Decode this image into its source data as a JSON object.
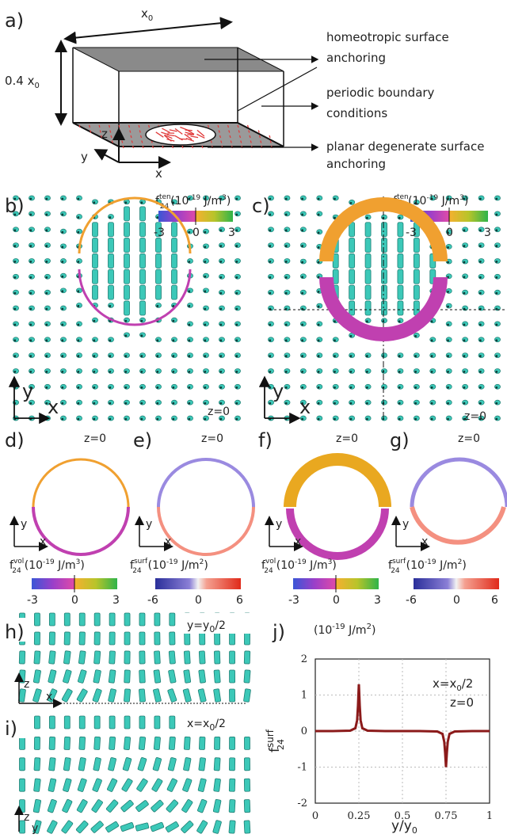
{
  "schematic": {
    "label": "a)",
    "width_label": "x",
    "width_sub": "0",
    "height_label": "0.4 x",
    "height_sub": "0",
    "axis_z": "z",
    "axis_y": "y",
    "axis_x": "x",
    "annotations": [
      "homeotropic surface",
      "anchoring",
      "periodic boundary",
      "conditions",
      "planar degenerate surface",
      "anchoring"
    ]
  },
  "panel_b": {
    "label": "b)",
    "z": "z=0",
    "axis_x": "x",
    "axis_y": "y"
  },
  "panel_c": {
    "label": "c)",
    "z": "z=0",
    "axis_x": "x",
    "axis_y": "y"
  },
  "cbar_ten": {
    "main": "f",
    "sup": "ten",
    "sub": "24",
    "unit": "(10",
    "exp": "-19",
    "unit2": " J/m",
    "pow": "3",
    "unit3": ")",
    "ticks": [
      "-3",
      "0",
      "3"
    ]
  },
  "cbar_vol": {
    "main": "f",
    "sup": "vol",
    "sub": "24",
    "unit": "(10",
    "exp": "-19",
    "unit2": " J/m",
    "pow": "3",
    "unit3": ")",
    "ticks": [
      "-3",
      "0",
      "3"
    ]
  },
  "cbar_surf": {
    "main": "f",
    "sup": "surf",
    "sub": "24",
    "unit": "(10",
    "exp": "-19",
    "unit2": " J/m",
    "pow": "2",
    "unit3": ")",
    "ticks": [
      "-6",
      "0",
      "6"
    ]
  },
  "panel_d": {
    "label": "d)",
    "z": "z=0",
    "axis_x": "x",
    "axis_y": "y"
  },
  "panel_e": {
    "label": "e)",
    "z": "z=0",
    "axis_x": "x",
    "axis_y": "y"
  },
  "panel_f": {
    "label": "f)",
    "z": "z=0",
    "axis_x": "x",
    "axis_y": "y"
  },
  "panel_g": {
    "label": "g)",
    "z": "z=0",
    "axis_x": "x",
    "axis_y": "y"
  },
  "panel_h": {
    "label": "h)",
    "slice": "y=y",
    "slice_sub": "0",
    "slice_tail": "/2",
    "axis_z": "z",
    "axis_x": "x"
  },
  "panel_i": {
    "label": "i)",
    "slice": "x=x",
    "slice_sub": "0",
    "slice_tail": "/2",
    "axis_z": "z",
    "axis_y": "y"
  },
  "panel_j": {
    "label": "j)",
    "unit": "(10",
    "exp": "-19",
    "unit2": " J/m",
    "pow": "2",
    "unit3": ")",
    "ylabel_main": "f",
    "ylabel_sup": "surf",
    "ylabel_sub": "24",
    "xlabel_main": "y/y",
    "xlabel_sub": "0",
    "note1_main": "x=x",
    "note1_sub": "0",
    "note1_tail": "/2",
    "note2": "z=0"
  },
  "chart_data": {
    "type": "line",
    "title": "",
    "xlabel": "y/y0",
    "ylabel": "f24 surf",
    "xlim": [
      0,
      1
    ],
    "ylim": [
      -2,
      2
    ],
    "xticks": [
      "0",
      "0.25",
      "0.5",
      "0.75",
      "1"
    ],
    "yticks": [
      "2",
      "1",
      "0",
      "-1",
      "-2"
    ],
    "grid": true,
    "series": [
      {
        "color": "#8b1a1a",
        "x": [
          0,
          0.1,
          0.2,
          0.23,
          0.24,
          0.245,
          0.25,
          0.255,
          0.26,
          0.27,
          0.3,
          0.4,
          0.5,
          0.6,
          0.7,
          0.73,
          0.74,
          0.745,
          0.75,
          0.755,
          0.76,
          0.77,
          0.8,
          0.9,
          1.0
        ],
        "y": [
          0,
          0,
          0.01,
          0.08,
          0.3,
          0.7,
          1.3,
          0.7,
          0.3,
          0.08,
          0.01,
          0,
          0,
          0,
          -0.01,
          -0.08,
          -0.3,
          -0.6,
          -1.0,
          -0.6,
          -0.3,
          -0.08,
          -0.01,
          0,
          0
        ]
      }
    ]
  }
}
